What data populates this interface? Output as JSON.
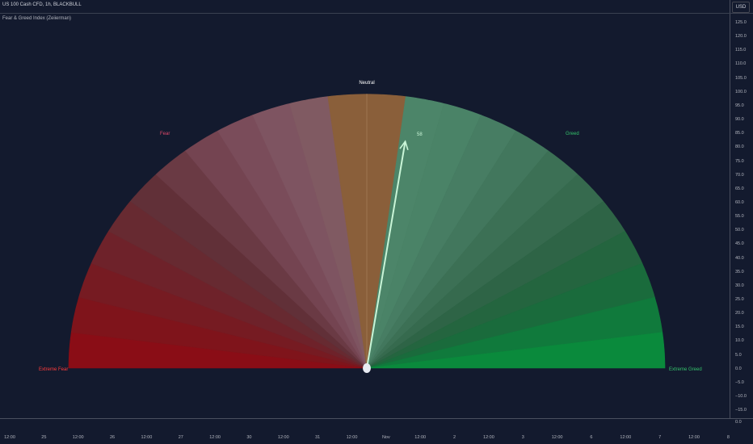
{
  "header": {
    "symbol_title": "US 100 Cash CFD, 1h, BLACKBULL",
    "currency_button": "USD"
  },
  "indicator": {
    "name": "Fear & Greed Index (Zeiierman)"
  },
  "price_scale": {
    "ticks": [
      "125.0",
      "120.0",
      "115.0",
      "110.0",
      "105.0",
      "100.0",
      "95.0",
      "90.0",
      "85.0",
      "80.0",
      "75.0",
      "70.0",
      "65.0",
      "60.0",
      "55.0",
      "50.0",
      "45.0",
      "40.0",
      "35.0",
      "30.0",
      "25.0",
      "20.0",
      "15.0",
      "10.0",
      "5.0",
      "0.0",
      "−5.0",
      "−10.0",
      "−15.0"
    ],
    "lower_tick": "0.0"
  },
  "time_axis": {
    "labels": [
      "12:00",
      "25",
      "12:00",
      "26",
      "12:00",
      "27",
      "12:00",
      "30",
      "12:00",
      "31",
      "12:00",
      "Nov",
      "12:00",
      "2",
      "12:00",
      "3",
      "12:00",
      "6",
      "12:00",
      "7",
      "12:00",
      "8"
    ]
  },
  "gauge": {
    "labels": {
      "extreme_fear": "Extreme Fear",
      "fear": "Fear",
      "neutral": "Neutral",
      "greed": "Greed",
      "extreme_greed": "Extreme Greed"
    },
    "value": 58,
    "value_label": "58",
    "colors": {
      "extreme_fear": "#ff3b3b",
      "fear": "#e0496b",
      "neutral": "#ffffff",
      "greed": "#34c26b",
      "extreme_greed": "#34c26b",
      "needle": "#c9f5d7",
      "pivot": "#e8ebf2"
    },
    "segments": [
      {
        "color": "#8a0d16"
      },
      {
        "color": "#7f141b"
      },
      {
        "color": "#761b22"
      },
      {
        "color": "#6e222a"
      },
      {
        "color": "#672a31"
      },
      {
        "color": "#613038"
      },
      {
        "color": "#6a3a44"
      },
      {
        "color": "#744451"
      },
      {
        "color": "#7a4c5a"
      },
      {
        "color": "#7e5461"
      },
      {
        "color": "#805a62"
      },
      {
        "color": "#8a5f3a"
      },
      {
        "color": "#8a5f3a"
      },
      {
        "color": "#4c8569"
      },
      {
        "color": "#4a8367"
      },
      {
        "color": "#477d63"
      },
      {
        "color": "#42775d"
      },
      {
        "color": "#3c7055"
      },
      {
        "color": "#366a4e"
      },
      {
        "color": "#2e6446"
      },
      {
        "color": "#24653f"
      },
      {
        "color": "#1a6b3c"
      },
      {
        "color": "#107a3c"
      },
      {
        "color": "#0a8a3c"
      }
    ]
  }
}
